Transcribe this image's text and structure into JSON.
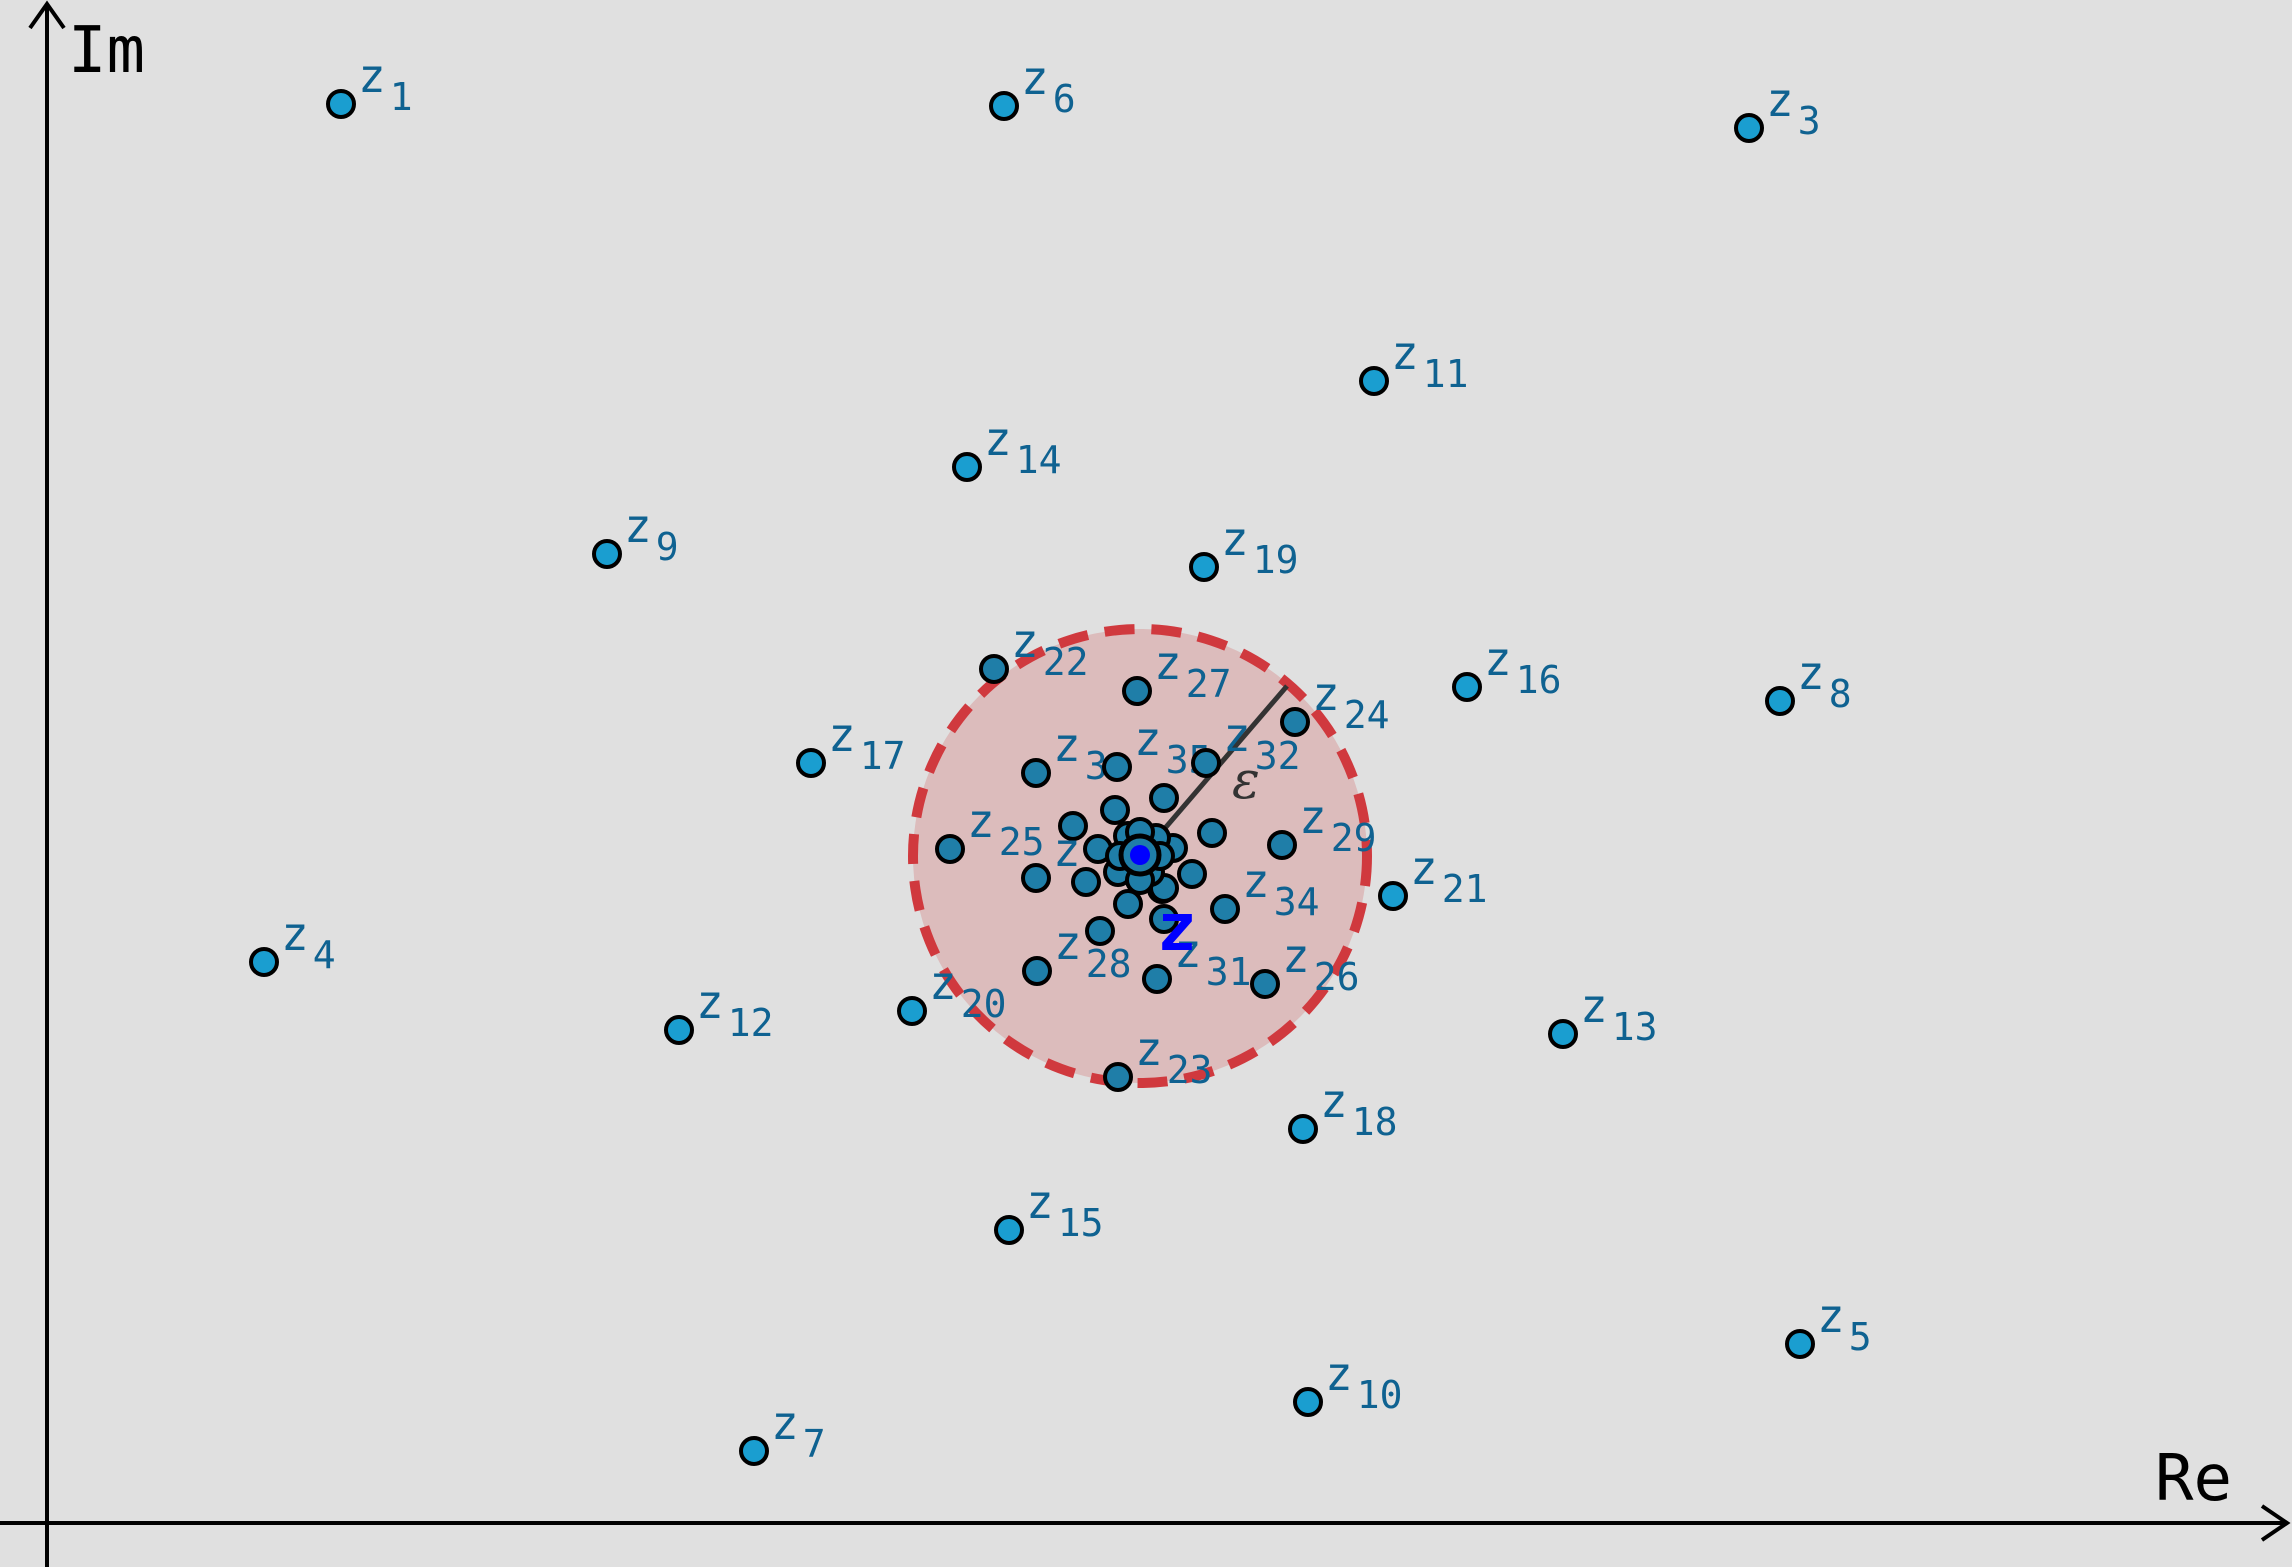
{
  "diagram": {
    "axes": {
      "x_label": "Re",
      "y_label": "Im"
    },
    "center_label": "z",
    "radius_label": "ε",
    "colors": {
      "background": "#e0e0e0",
      "point_fill": "#1a9ed0",
      "point_fill_inner": "#1f7ea8",
      "label": "#0f6291",
      "center": "#0000ff",
      "disk_fill": "#dcbcbc",
      "disk_stroke": "#d0393e"
    },
    "points": [
      {
        "sub": "1"
      },
      {
        "sub": "3"
      },
      {
        "sub": "6"
      },
      {
        "sub": "11"
      },
      {
        "sub": "14"
      },
      {
        "sub": "9"
      },
      {
        "sub": "19"
      },
      {
        "sub": "16"
      },
      {
        "sub": "8"
      },
      {
        "sub": "22"
      },
      {
        "sub": "27"
      },
      {
        "sub": "24"
      },
      {
        "sub": "17"
      },
      {
        "sub": "3"
      },
      {
        "sub": "35"
      },
      {
        "sub": "32"
      },
      {
        "sub": "25"
      },
      {
        "sub": "29"
      },
      {
        "sub": "21"
      },
      {
        "sub": "34"
      },
      {
        "sub": "4"
      },
      {
        "sub": "28"
      },
      {
        "sub": "31"
      },
      {
        "sub": "26"
      },
      {
        "sub": "12"
      },
      {
        "sub": "20"
      },
      {
        "sub": "13"
      },
      {
        "sub": "23"
      },
      {
        "sub": "18"
      },
      {
        "sub": "15"
      },
      {
        "sub": "5"
      },
      {
        "sub": "10"
      },
      {
        "sub": "7"
      },
      {
        "sub": ""
      }
    ]
  }
}
